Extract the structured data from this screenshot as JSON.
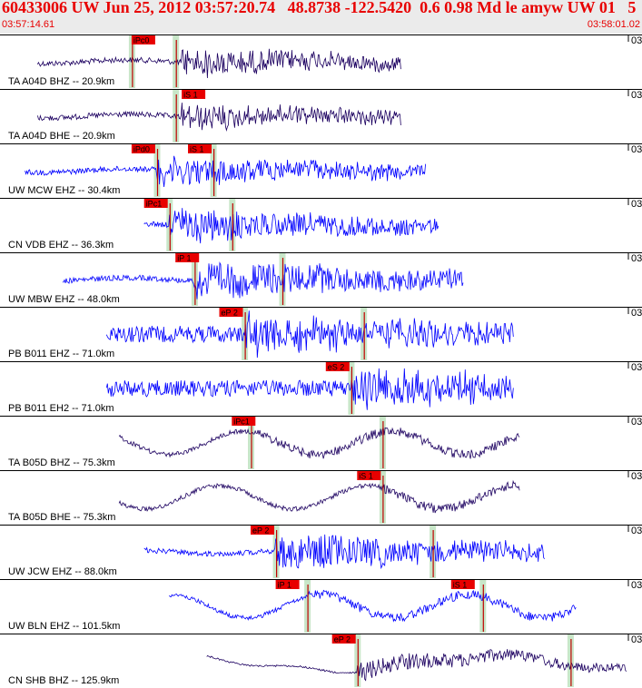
{
  "header": {
    "title": "60433006 UW Jun 25, 2012 03:57:20.74   48.8738 -122.5420  0.6 0.98 Md le amyw UW 01   5",
    "start_time": "03:57:14.61",
    "end_time": "03:58:01.02"
  },
  "colors": {
    "header_bg": "#ebebeb",
    "header_text": "#e80000",
    "trace_dark": "#1c0060",
    "trace_blue": "#0000ff",
    "pick_bg": "#e80000",
    "pick_window": "#c8e6c8",
    "pick_line": "#c00000"
  },
  "panels": [
    {
      "label": "TA A04D BHZ -- 20.9km",
      "tick": "03",
      "color": "dark",
      "style": "burst",
      "start": 0.06,
      "end": 0.64,
      "onset": 0.29,
      "amp": 0.28,
      "picks": [
        {
          "text": "iPc0",
          "t": 0.21,
          "win": 0.21
        },
        {
          "text": "",
          "t": 0.39,
          "win": 0.28,
          "line": true
        }
      ]
    },
    {
      "label": "TA A04D BHE -- 20.9km",
      "tick": "03",
      "color": "dark",
      "style": "burst",
      "start": 0.06,
      "end": 0.64,
      "onset": 0.29,
      "amp": 0.25,
      "picks": [
        {
          "text": "iS 1",
          "t": 0.29,
          "win": 0.28
        }
      ]
    },
    {
      "label": "UW MCW EHZ -- 30.4km",
      "tick": "03",
      "color": "blue",
      "style": "burst",
      "start": 0.04,
      "end": 0.68,
      "onset": 0.25,
      "amp": 0.3,
      "picks": [
        {
          "text": "iPd0",
          "t": 0.21,
          "win": 0.25
        },
        {
          "text": "iS 1",
          "t": 0.3,
          "win": 0.34
        }
      ]
    },
    {
      "label": "CN VDB EHZ -- 36.3km",
      "tick": "03",
      "color": "blue",
      "style": "burst",
      "start": 0.23,
      "end": 0.7,
      "onset": 0.27,
      "amp": 0.35,
      "picks": [
        {
          "text": "iPc1",
          "t": 0.23,
          "win": 0.27
        },
        {
          "text": "",
          "t": 0.37,
          "win": 0.37
        }
      ]
    },
    {
      "label": "UW MBW EHZ -- 48.0km",
      "tick": "03",
      "color": "blue",
      "style": "burst",
      "start": 0.1,
      "end": 0.74,
      "onset": 0.31,
      "amp": 0.4,
      "picks": [
        {
          "text": "iP 1",
          "t": 0.28,
          "win": 0.31
        },
        {
          "text": "",
          "t": 0.45,
          "win": 0.45,
          "line": true
        }
      ]
    },
    {
      "label": "PB B011 EHZ -- 71.0km",
      "tick": "03",
      "color": "blue",
      "style": "noise",
      "start": 0.17,
      "end": 0.82,
      "onset": 0.39,
      "amp": 0.38,
      "picks": [
        {
          "text": "eP 2",
          "t": 0.35,
          "win": 0.39
        },
        {
          "text": "",
          "t": 0.58,
          "win": 0.58
        }
      ]
    },
    {
      "label": "PB B011 EH2 -- 71.0km",
      "tick": "03",
      "color": "blue",
      "style": "noise",
      "start": 0.17,
      "end": 0.82,
      "onset": 0.56,
      "amp": 0.3,
      "picks": [
        {
          "text": "eS 2",
          "t": 0.52,
          "win": 0.56
        }
      ]
    },
    {
      "label": "TA B05D BHZ -- 75.3km",
      "tick": "03",
      "color": "dark",
      "style": "wave",
      "start": 0.19,
      "end": 0.83,
      "onset": 0.41,
      "amp": 0.3,
      "picks": [
        {
          "text": "iPc1",
          "t": 0.37,
          "win": 0.4
        },
        {
          "text": "",
          "t": 0.61,
          "win": 0.61
        }
      ]
    },
    {
      "label": "TA B05D BHE -- 75.3km",
      "tick": "03",
      "color": "dark",
      "style": "wave",
      "start": 0.19,
      "end": 0.83,
      "onset": 0.61,
      "amp": 0.22,
      "picks": [
        {
          "text": "iS 1",
          "t": 0.57,
          "win": 0.61
        }
      ]
    },
    {
      "label": "UW JCW EHZ -- 88.0km",
      "tick": "03",
      "color": "blue",
      "style": "burst",
      "start": 0.23,
      "end": 0.87,
      "onset": 0.44,
      "amp": 0.38,
      "picks": [
        {
          "text": "eP 2",
          "t": 0.4,
          "win": 0.44
        },
        {
          "text": "",
          "t": 0.69,
          "win": 0.69
        }
      ]
    },
    {
      "label": "UW BLN EHZ -- 101.5km",
      "tick": "03",
      "color": "blue",
      "style": "wave",
      "start": 0.27,
      "end": 0.92,
      "onset": 0.49,
      "amp": 0.3,
      "picks": [
        {
          "text": "iP 1",
          "t": 0.44,
          "win": 0.49
        },
        {
          "text": "iS 1",
          "t": 0.72,
          "win": 0.77
        }
      ]
    },
    {
      "label": "CN SHB BHZ -- 125.9km",
      "tick": "03",
      "color": "dark",
      "style": "long",
      "start": 0.33,
      "end": 1.0,
      "onset": 0.57,
      "amp": 0.4,
      "picks": [
        {
          "text": "eP 2",
          "t": 0.53,
          "win": 0.57
        },
        {
          "text": "",
          "t": 0.91,
          "win": 0.91
        }
      ]
    }
  ]
}
